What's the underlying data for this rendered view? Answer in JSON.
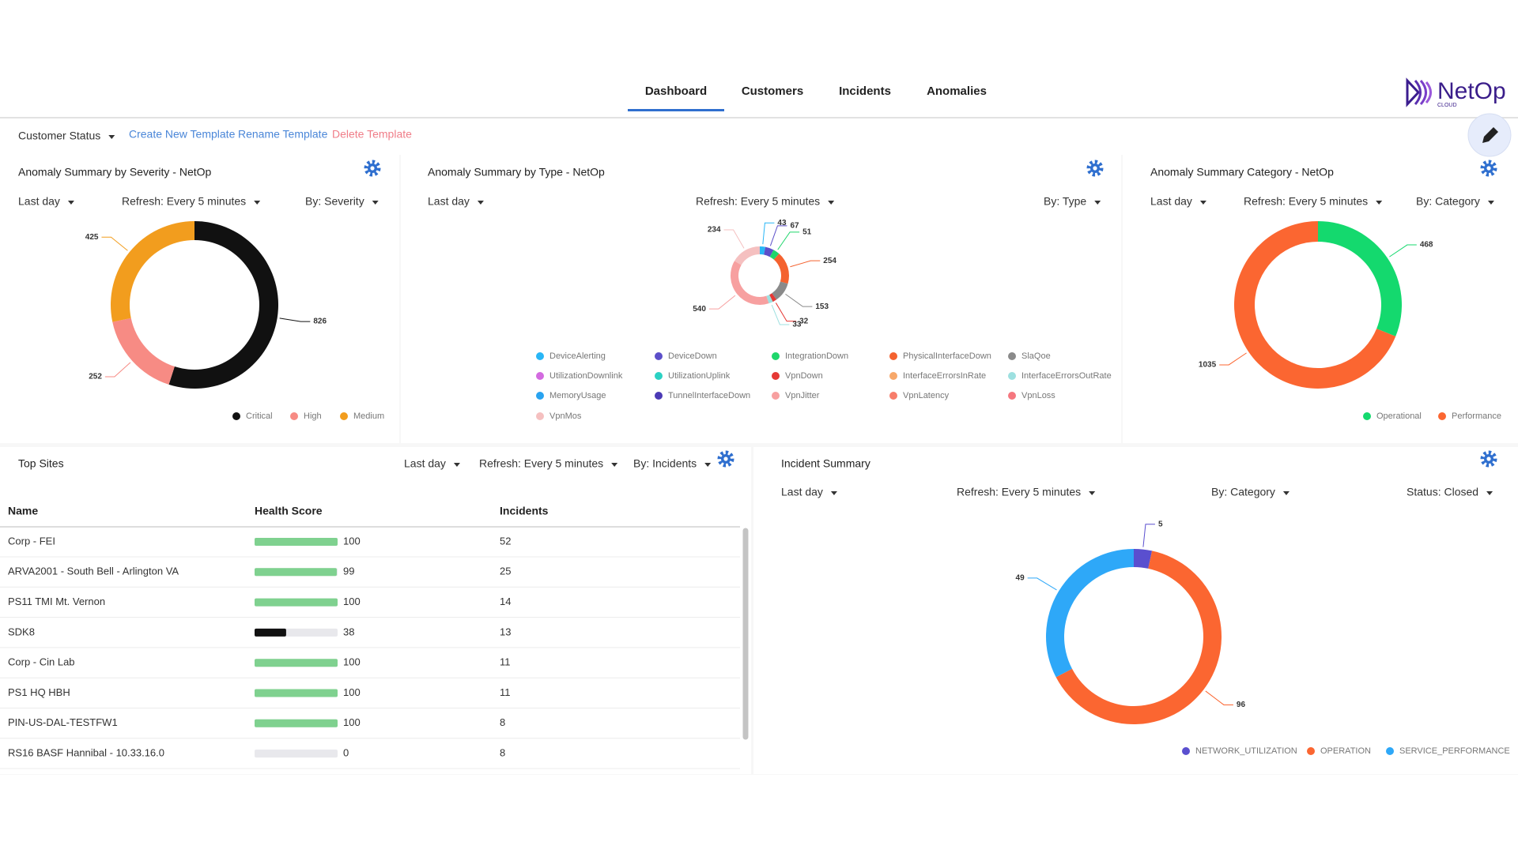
{
  "nav": {
    "tabs": [
      "Dashboard",
      "Customers",
      "Incidents",
      "Anomalies"
    ]
  },
  "logo": {
    "name": "NetOp",
    "sub": "CLOUD"
  },
  "toolbar": {
    "selector": "Customer Status",
    "links": [
      "Create New Template",
      "Rename Template",
      "Delete Template"
    ]
  },
  "severity": {
    "title": "Anomaly Summary by Severity - NetOp",
    "filters": [
      "Last day",
      "Refresh: Every 5 minutes",
      "By: Severity"
    ],
    "chart_data": {
      "type": "pie",
      "donut": true,
      "categories": [
        "Critical",
        "High",
        "Medium"
      ],
      "values": [
        826,
        252,
        425
      ],
      "colors": [
        "#111111",
        "#f78b84",
        "#f29d1e"
      ]
    }
  },
  "by_type": {
    "title": "Anomaly Summary by Type - NetOp",
    "filters": [
      "Last day",
      "Refresh: Every 5 minutes",
      "By: Type"
    ],
    "chart_data": {
      "type": "pie",
      "donut": true,
      "categories": [
        "DeviceAlerting",
        "DeviceDown",
        "IntegrationDown",
        "PhysicalInterfaceDown",
        "SlaQoe",
        "UtilizationDownlink",
        "UtilizationUplink",
        "VpnDown",
        "InterfaceErrorsInRate",
        "InterfaceErrorsOutRate",
        "MemoryUsage",
        "TunnelInterfaceDown",
        "VpnJitter",
        "VpnLatency",
        "VpnLoss",
        "VpnMos"
      ],
      "values": [
        43,
        67,
        51,
        254,
        153,
        null,
        null,
        32,
        null,
        33,
        null,
        null,
        540,
        null,
        null,
        234
      ],
      "colors": [
        "#29b6f6",
        "#5c4fc9",
        "#1ed66b",
        "#f4622f",
        "#8a8a8a",
        "#d36be0",
        "#2bd1c3",
        "#e53935",
        "#f7a86a",
        "#9de0e0",
        "#29a3f0",
        "#4b3ab5",
        "#f7a0a0",
        "#f77d6b",
        "#f5777f",
        "#f5c0c0"
      ]
    }
  },
  "category": {
    "title": "Anomaly Summary Category - NetOp",
    "filters": [
      "Last day",
      "Refresh: Every 5 minutes",
      "By: Category"
    ],
    "chart_data": {
      "type": "pie",
      "donut": true,
      "categories": [
        "Operational",
        "Performance"
      ],
      "values": [
        468,
        1035
      ],
      "colors": [
        "#14d96e",
        "#fb6631"
      ]
    }
  },
  "top_sites": {
    "title": "Top Sites",
    "filters": [
      "Last day",
      "Refresh: Every 5 minutes",
      "By: Incidents"
    ],
    "columns": [
      "Name",
      "Health Score",
      "Incidents"
    ],
    "health_range": [
      0,
      100
    ],
    "rows": [
      {
        "name": "Corp - FEI",
        "health_score": 100,
        "bar_color": "#7fd18f",
        "incidents": 52
      },
      {
        "name": "ARVA2001 - South Bell - Arlington VA",
        "health_score": 99,
        "bar_color": "#7fd18f",
        "incidents": 25
      },
      {
        "name": "PS11 TMI Mt. Vernon",
        "health_score": 100,
        "bar_color": "#7fd18f",
        "incidents": 14
      },
      {
        "name": "SDK8",
        "health_score": 38,
        "bar_color": "#111111",
        "incidents": 13
      },
      {
        "name": "Corp - Cin Lab",
        "health_score": 100,
        "bar_color": "#7fd18f",
        "incidents": 11
      },
      {
        "name": "PS1 HQ HBH",
        "health_score": 100,
        "bar_color": "#7fd18f",
        "incidents": 11
      },
      {
        "name": "PIN-US-DAL-TESTFW1",
        "health_score": 100,
        "bar_color": "#7fd18f",
        "incidents": 8
      },
      {
        "name": "RS16 BASF Hannibal - 10.33.16.0",
        "health_score": 0,
        "bar_color": "#7fd18f",
        "incidents": 8
      }
    ]
  },
  "incidents": {
    "title": "Incident Summary",
    "filters": [
      "Last day",
      "Refresh: Every 5 minutes",
      "By: Category",
      "Status: Closed"
    ],
    "chart_data": {
      "type": "pie",
      "donut": true,
      "categories": [
        "NETWORK_UTILIZATION",
        "OPERATION",
        "SERVICE_PERFORMANCE"
      ],
      "values": [
        5,
        96,
        49
      ],
      "colors": [
        "#5a4fcf",
        "#fb6631",
        "#2ea8f8"
      ]
    }
  }
}
